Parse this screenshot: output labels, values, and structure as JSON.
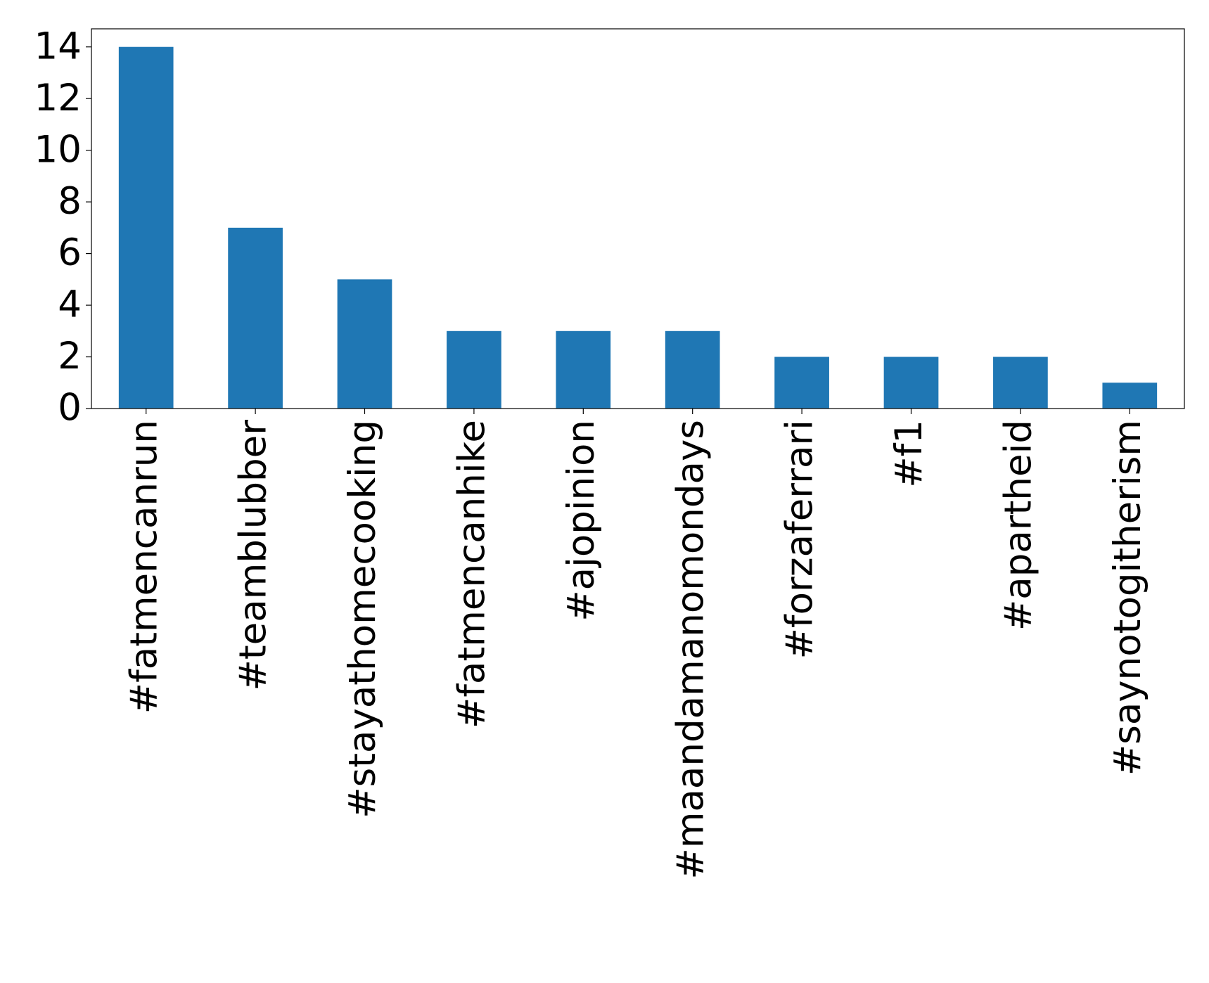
{
  "chart_data": {
    "type": "bar",
    "categories": [
      "#fatmencanrun",
      "#teamblubber",
      "#stayathomecooking",
      "#fatmencanhike",
      "#ajopinion",
      "#maandamanomondays",
      "#forzaferrari",
      "#f1",
      "#apartheid",
      "#saynotogitherism"
    ],
    "values": [
      14,
      7,
      5,
      3,
      3,
      3,
      2,
      2,
      2,
      1
    ],
    "color": "#1f77b4",
    "ylim": [
      0,
      14.7
    ],
    "yticks": [
      0,
      2,
      4,
      6,
      8,
      10,
      12,
      14
    ],
    "grid": false
  }
}
